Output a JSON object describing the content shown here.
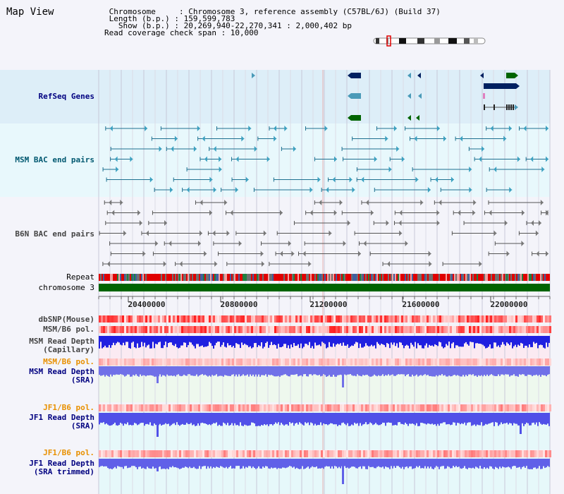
{
  "header": {
    "title": "Map View",
    "info_lines": [
      " Chromosome     : Chromosome 3, reference assembly (C57BL/6J) (Build 37)",
      " Length (b.p.) : 159,599,783",
      "   Show (b.p.) : 20,269,940-22,270,341 : 2,000,402 bp",
      "Read coverage check span : 10,000"
    ]
  },
  "tracks": {
    "refseq": "RefSeq Genes",
    "msm_bac": "MSM BAC end pairs",
    "b6n_bac": "B6N BAC end pairs",
    "repeat": "Repeat",
    "chromosome": "chromosome 3",
    "dbsnp": "dbSNP(Mouse)",
    "msm_pol1": "MSM/B6 pol.",
    "msm_depth_cap": "MSM Read Depth\n(Capillary)",
    "msm_pol2": "MSM/B6 pol.",
    "msm_depth_sra": "MSM Read Depth\n(SRA)",
    "jf1_pol1": "JF1/B6 pol.",
    "jf1_depth_sra": "JF1 Read Depth\n(SRA)",
    "jf1_pol2": "JF1/B6 pol.",
    "jf1_depth_trim": "JF1 Read Depth\n(SRA trimmed)"
  },
  "axis": {
    "ticks": [
      "20400000",
      "20800000",
      "21200000",
      "21600000",
      "22000000"
    ]
  },
  "colors": {
    "refseq_bg": "#ddeef8",
    "bac_bg": "#e8f8fc",
    "gene_navy": "#002060",
    "gene_green": "#006400",
    "gene_teal": "#4a9ab8",
    "chromosome_bar": "#006400",
    "label_blue": "#000080",
    "label_teal": "#005870",
    "label_orange": "#e89000"
  }
}
